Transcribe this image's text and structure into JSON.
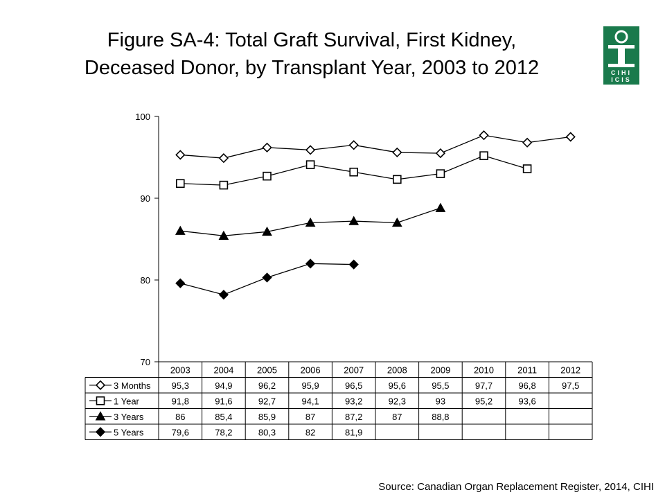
{
  "title": {
    "line1": "Figure SA-4: Total Graft Survival, First Kidney,",
    "line2": "Deceased Donor, by Transplant Year, 2003 to 2012"
  },
  "logo": {
    "icon": "cihi-logo-icon",
    "text_top": "CIHI",
    "text_bottom": "ICIS",
    "color": "#1a7a4c"
  },
  "source": "Source: Canadian Organ Replacement Register, 2014, CIHI",
  "chart_data": {
    "type": "line",
    "categories": [
      "2003",
      "2004",
      "2005",
      "2006",
      "2007",
      "2008",
      "2009",
      "2010",
      "2011",
      "2012"
    ],
    "ylim": [
      70,
      100
    ],
    "yticks": [
      "70",
      "80",
      "90",
      "100"
    ],
    "grid": false,
    "legend": "data-table-below",
    "series": [
      {
        "name": "3 Months",
        "marker": "diamond-open",
        "values": [
          95.3,
          94.9,
          96.2,
          95.9,
          96.5,
          95.6,
          95.5,
          97.7,
          96.8,
          97.5
        ],
        "labels": [
          "95,3",
          "94,9",
          "96,2",
          "95,9",
          "96,5",
          "95,6",
          "95,5",
          "97,7",
          "96,8",
          "97,5"
        ]
      },
      {
        "name": "1 Year",
        "marker": "square-open",
        "values": [
          91.8,
          91.6,
          92.7,
          94.1,
          93.2,
          92.3,
          93.0,
          95.2,
          93.6,
          null
        ],
        "labels": [
          "91,8",
          "91,6",
          "92,7",
          "94,1",
          "93,2",
          "92,3",
          "93",
          "95,2",
          "93,6",
          ""
        ]
      },
      {
        "name": "3 Years",
        "marker": "triangle-filled",
        "values": [
          86.0,
          85.4,
          85.9,
          87.0,
          87.2,
          87.0,
          88.8,
          null,
          null,
          null
        ],
        "labels": [
          "86",
          "85,4",
          "85,9",
          "87",
          "87,2",
          "87",
          "88,8",
          "",
          "",
          ""
        ]
      },
      {
        "name": "5 Years",
        "marker": "diamond-filled",
        "values": [
          79.6,
          78.2,
          80.3,
          82.0,
          81.9,
          null,
          null,
          null,
          null,
          null
        ],
        "labels": [
          "79,6",
          "78,2",
          "80,3",
          "82",
          "81,9",
          "",
          "",
          "",
          "",
          ""
        ]
      }
    ]
  }
}
